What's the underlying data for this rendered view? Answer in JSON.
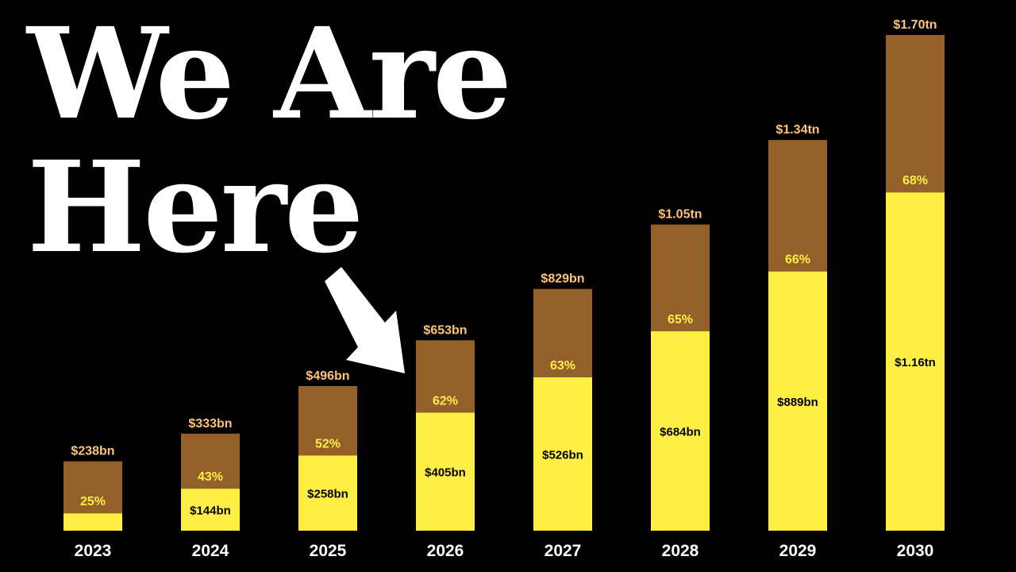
{
  "headline": {
    "line1": "We Are",
    "line2": "Here"
  },
  "arrow": {
    "icon": "arrow-down-right-icon",
    "points_to": "2026"
  },
  "colors": {
    "background": "#000000",
    "total_segment": "#94602a",
    "share_segment": "#ffee44",
    "total_label": "#ffc27a",
    "percent_label": "#ffee44",
    "value_label": "#000000",
    "year_label": "#ffffff",
    "headline": "#ffffff"
  },
  "chart_data": {
    "type": "bar",
    "stacked": true,
    "categories": [
      "2023",
      "2024",
      "2025",
      "2026",
      "2027",
      "2028",
      "2029",
      "2030"
    ],
    "totals": [
      238,
      333,
      496,
      653,
      829,
      1050,
      1340,
      1700
    ],
    "total_labels": [
      "$238bn",
      "$333bn",
      "$496bn",
      "$653bn",
      "$829bn",
      "$1.05tn",
      "$1.34tn",
      "$1.70tn"
    ],
    "share_values": [
      59.5,
      144,
      258,
      405,
      526,
      684,
      889,
      1160
    ],
    "share_labels": [
      "",
      "$144bn",
      "$258bn",
      "$405bn",
      "$526bn",
      "$684bn",
      "$889bn",
      "$1.16tn"
    ],
    "percent_labels": [
      "25%",
      "43%",
      "52%",
      "62%",
      "63%",
      "65%",
      "66%",
      "68%"
    ],
    "unit": "bn",
    "ylim": [
      0,
      1700
    ],
    "grid": false,
    "legend": "none"
  }
}
